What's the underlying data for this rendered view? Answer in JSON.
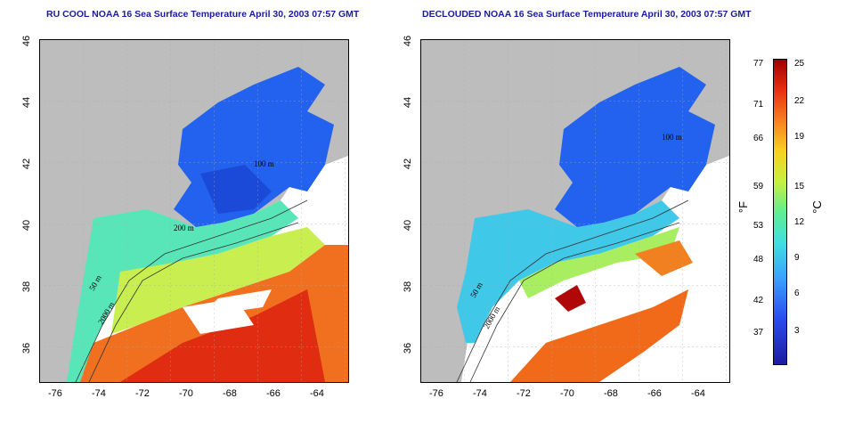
{
  "titles": {
    "left": "RU COOL NOAA 16 Sea Surface Temperature April 30, 2003 07:57 GMT",
    "right": "DECLOUDED NOAA 16 Sea Surface Temperature April 30, 2003 07:57 GMT"
  },
  "axes": {
    "x_ticks": [
      "-76",
      "-74",
      "-72",
      "-70",
      "-68",
      "-66",
      "-64"
    ],
    "y_ticks": [
      "46",
      "44",
      "42",
      "40",
      "38",
      "36"
    ]
  },
  "contours_left": [
    "200 m",
    "50 m",
    "2000 m",
    "100 m"
  ],
  "contours_right": [
    "100 m",
    "50 m",
    "2000 m"
  ],
  "colorbar": {
    "fahrenheit": [
      "77",
      "71",
      "66",
      "59",
      "53",
      "48",
      "42",
      "37"
    ],
    "celsius": [
      "25",
      "22",
      "19",
      "15",
      "12",
      "9",
      "6",
      "3"
    ],
    "unit_f": "°F",
    "unit_c": "°C"
  },
  "colors": {
    "land": "#bdbdbd",
    "title": "#1a1aa0",
    "cold": "#2060f0",
    "warm": "#e83010"
  }
}
